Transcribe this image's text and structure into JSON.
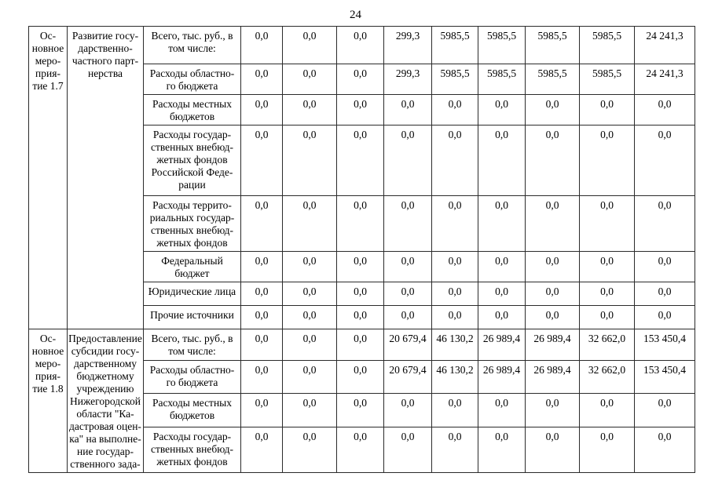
{
  "page": {
    "number": "24"
  },
  "table": {
    "sections": [
      {
        "id_lines": [
          "Ос-",
          "новное",
          "меро-",
          "прия-",
          "тие 1.7"
        ],
        "name_lines": [
          "Развитие госу-",
          "дарственно-",
          "частного парт-",
          "нерства"
        ],
        "rows": [
          {
            "label_lines": [
              "Всего, тыс. руб., в",
              "том числе:"
            ],
            "values": [
              "0,0",
              "0,0",
              "0,0",
              "299,3",
              "5985,5",
              "5985,5",
              "5985,5",
              "5985,5",
              "24 241,3"
            ]
          },
          {
            "label_lines": [
              "Расходы областно-",
              "го бюджета"
            ],
            "values": [
              "0,0",
              "0,0",
              "0,0",
              "299,3",
              "5985,5",
              "5985,5",
              "5985,5",
              "5985,5",
              "24 241,3"
            ]
          },
          {
            "label_lines": [
              "Расходы местных",
              "бюджетов"
            ],
            "values": [
              "0,0",
              "0,0",
              "0,0",
              "0,0",
              "0,0",
              "0,0",
              "0,0",
              "0,0",
              "0,0"
            ]
          },
          {
            "label_lines": [
              "Расходы государ-",
              "ственных внебюд-",
              "жетных фондов",
              "Российской Феде-",
              "рации"
            ],
            "values": [
              "0,0",
              "0,0",
              "0,0",
              "0,0",
              "0,0",
              "0,0",
              "0,0",
              "0,0",
              "0,0"
            ]
          },
          {
            "label_lines": [
              "Расходы террито-",
              "риальных государ-",
              "ственных внебюд-",
              "жетных фондов"
            ],
            "values": [
              "0,0",
              "0,0",
              "0,0",
              "0,0",
              "0,0",
              "0,0",
              "0,0",
              "0,0",
              "0,0"
            ]
          },
          {
            "label_lines": [
              "Федеральный",
              "бюджет"
            ],
            "values": [
              "0,0",
              "0,0",
              "0,0",
              "0,0",
              "0,0",
              "0,0",
              "0,0",
              "0,0",
              "0,0"
            ]
          },
          {
            "label_lines": [
              "Юридические лица"
            ],
            "values": [
              "0,0",
              "0,0",
              "0,0",
              "0,0",
              "0,0",
              "0,0",
              "0,0",
              "0,0",
              "0,0"
            ]
          },
          {
            "label_lines": [
              "Прочие источники"
            ],
            "values": [
              "0,0",
              "0,0",
              "0,0",
              "0,0",
              "0,0",
              "0,0",
              "0,0",
              "0,0",
              "0,0"
            ]
          }
        ]
      },
      {
        "id_lines": [
          "Ос-",
          "новное",
          "меро-",
          "прия-",
          "тие 1.8"
        ],
        "name_lines": [
          "Предоставление",
          "субсидии госу-",
          "дарственному",
          "бюджетному",
          "учреждению",
          "Нижегородской",
          "области \"Ка-",
          "дастровая оцен-",
          "ка\" на выполне-",
          "ние государ-",
          "ственного зада-"
        ],
        "rows": [
          {
            "label_lines": [
              "Всего, тыс. руб., в",
              "том числе:"
            ],
            "values": [
              "0,0",
              "0,0",
              "0,0",
              "20 679,4",
              "46 130,2",
              "26 989,4",
              "26 989,4",
              "32 662,0",
              "153 450,4"
            ]
          },
          {
            "label_lines": [
              "Расходы областно-",
              "го бюджета"
            ],
            "values": [
              "0,0",
              "0,0",
              "0,0",
              "20 679,4",
              "46 130,2",
              "26 989,4",
              "26 989,4",
              "32 662,0",
              "153 450,4"
            ]
          },
          {
            "label_lines": [
              "Расходы местных",
              "бюджетов"
            ],
            "values": [
              "0,0",
              "0,0",
              "0,0",
              "0,0",
              "0,0",
              "0,0",
              "0,0",
              "0,0",
              "0,0"
            ]
          },
          {
            "label_lines": [
              "Расходы государ-",
              "ственных внебюд-",
              "жетных фондов"
            ],
            "values": [
              "0,0",
              "0,0",
              "0,0",
              "0,0",
              "0,0",
              "0,0",
              "0,0",
              "0,0",
              "0,0"
            ]
          }
        ]
      }
    ]
  }
}
